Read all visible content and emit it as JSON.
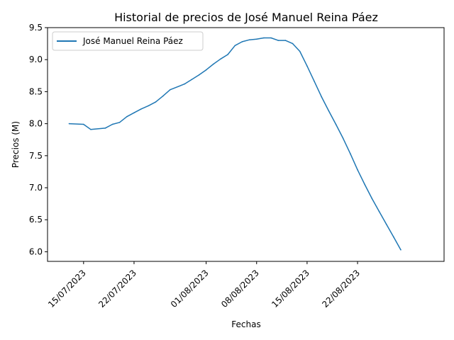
{
  "chart_data": {
    "type": "line",
    "title": "Historial de precios de José Manuel Reina Páez",
    "xlabel": "Fechas",
    "ylabel": "Precios (M)",
    "x_start": "2023-07-11",
    "x_end": "2023-09-01",
    "xlim": [
      "2023-07-10",
      "2023-09-03"
    ],
    "ylim": [
      5.85,
      9.5
    ],
    "x_ticks": [
      {
        "date": "2023-07-15",
        "label": "15/07/2023"
      },
      {
        "date": "2023-07-22",
        "label": "22/07/2023"
      },
      {
        "date": "2023-08-01",
        "label": "01/08/2023"
      },
      {
        "date": "2023-08-08",
        "label": "08/08/2023"
      },
      {
        "date": "2023-08-15",
        "label": "15/08/2023"
      },
      {
        "date": "2023-08-22",
        "label": "22/08/2023"
      }
    ],
    "y_ticks": [
      {
        "value": 6.0,
        "label": "6.0"
      },
      {
        "value": 6.5,
        "label": "6.5"
      },
      {
        "value": 7.0,
        "label": "7.0"
      },
      {
        "value": 7.5,
        "label": "7.5"
      },
      {
        "value": 8.0,
        "label": "8.0"
      },
      {
        "value": 8.5,
        "label": "8.5"
      },
      {
        "value": 9.0,
        "label": "9.0"
      },
      {
        "value": 9.5,
        "label": "9.5"
      }
    ],
    "grid": false,
    "legend_position": "top-left",
    "series": [
      {
        "name": "José Manuel Reina Páez",
        "color": "#1f77b4",
        "points": [
          [
            "2023-07-13",
            8.0
          ],
          [
            "2023-07-15",
            7.99
          ],
          [
            "2023-07-16",
            7.91
          ],
          [
            "2023-07-18",
            7.93
          ],
          [
            "2023-07-19",
            7.99
          ],
          [
            "2023-07-20",
            8.02
          ],
          [
            "2023-07-21",
            8.11
          ],
          [
            "2023-07-22",
            8.17
          ],
          [
            "2023-07-23",
            8.23
          ],
          [
            "2023-07-24",
            8.28
          ],
          [
            "2023-07-25",
            8.34
          ],
          [
            "2023-07-26",
            8.43
          ],
          [
            "2023-07-27",
            8.53
          ],
          [
            "2023-07-29",
            8.62
          ],
          [
            "2023-07-30",
            8.69
          ],
          [
            "2023-07-31",
            8.76
          ],
          [
            "2023-08-01",
            8.84
          ],
          [
            "2023-08-02",
            8.93
          ],
          [
            "2023-08-03",
            9.01
          ],
          [
            "2023-08-04",
            9.08
          ],
          [
            "2023-08-05",
            9.22
          ],
          [
            "2023-08-06",
            9.28
          ],
          [
            "2023-08-07",
            9.31
          ],
          [
            "2023-08-08",
            9.32
          ],
          [
            "2023-08-09",
            9.34
          ],
          [
            "2023-08-10",
            9.34
          ],
          [
            "2023-08-11",
            9.3
          ],
          [
            "2023-08-12",
            9.3
          ],
          [
            "2023-08-13",
            9.25
          ],
          [
            "2023-08-14",
            9.13
          ],
          [
            "2023-08-15",
            8.9
          ],
          [
            "2023-08-16",
            8.66
          ],
          [
            "2023-08-17",
            8.42
          ],
          [
            "2023-08-18",
            8.2
          ],
          [
            "2023-08-19",
            7.99
          ],
          [
            "2023-08-20",
            7.77
          ],
          [
            "2023-08-21",
            7.53
          ],
          [
            "2023-08-22",
            7.28
          ],
          [
            "2023-08-23",
            7.05
          ],
          [
            "2023-08-24",
            6.83
          ],
          [
            "2023-08-25",
            6.63
          ],
          [
            "2023-08-26",
            6.43
          ],
          [
            "2023-08-27",
            6.23
          ],
          [
            "2023-08-28",
            6.03
          ]
        ]
      }
    ]
  }
}
